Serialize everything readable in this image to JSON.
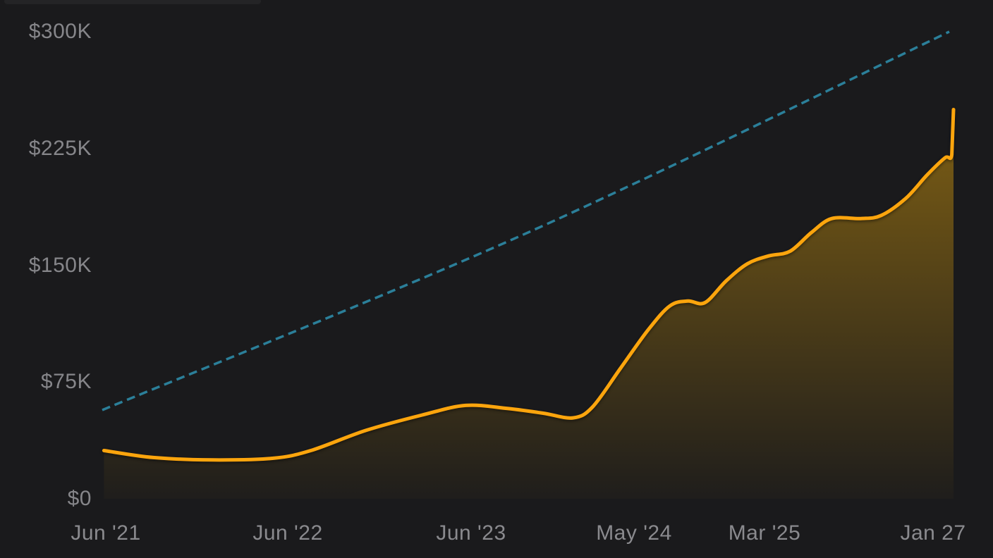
{
  "colors": {
    "background": "#1a1a1c",
    "axis_text": "#86868a",
    "actual_line": "#FCA50D",
    "projection_line": "#2B7F99",
    "fill_top": "rgba(255,184,10,0.44)",
    "fill_bottom": "rgba(255,184,10,0.02)"
  },
  "chart_data": {
    "type": "area",
    "title": "",
    "xlabel": "",
    "ylabel": "",
    "unit": "USD",
    "grid": false,
    "legend": "none",
    "ylim": [
      0,
      300000
    ],
    "y_ticks": [
      {
        "label": "$300K",
        "value": 300000
      },
      {
        "label": "$225K",
        "value": 225000
      },
      {
        "label": "$150K",
        "value": 150000
      },
      {
        "label": "$75K",
        "value": 75000
      },
      {
        "label": "$0",
        "value": 0
      }
    ],
    "x_ticks": [
      {
        "label": "Jun '21",
        "pos": 0.004
      },
      {
        "label": "Jun '22",
        "pos": 0.218
      },
      {
        "label": "Jun '23",
        "pos": 0.433
      },
      {
        "label": "May '24",
        "pos": 0.625
      },
      {
        "label": "Mar '25",
        "pos": 0.778
      },
      {
        "label": "Jan 27",
        "pos": 0.976
      }
    ],
    "series": [
      {
        "name": "actual-balance",
        "style": "solid-area",
        "points": [
          [
            0.002,
            31000
          ],
          [
            0.06,
            26500
          ],
          [
            0.13,
            25000
          ],
          [
            0.2,
            26000
          ],
          [
            0.245,
            31000
          ],
          [
            0.31,
            44000
          ],
          [
            0.377,
            54000
          ],
          [
            0.427,
            60000
          ],
          [
            0.476,
            58000
          ],
          [
            0.518,
            55000
          ],
          [
            0.553,
            52000
          ],
          [
            0.576,
            59000
          ],
          [
            0.609,
            84000
          ],
          [
            0.642,
            109000
          ],
          [
            0.667,
            124000
          ],
          [
            0.688,
            127000
          ],
          [
            0.708,
            126000
          ],
          [
            0.733,
            140000
          ],
          [
            0.758,
            151000
          ],
          [
            0.783,
            156000
          ],
          [
            0.808,
            159000
          ],
          [
            0.833,
            171000
          ],
          [
            0.857,
            180000
          ],
          [
            0.891,
            180000
          ],
          [
            0.915,
            182000
          ],
          [
            0.944,
            193000
          ],
          [
            0.969,
            208000
          ],
          [
            0.99,
            219000
          ],
          [
            0.998,
            221000
          ],
          [
            1.0,
            250000
          ]
        ]
      },
      {
        "name": "projection",
        "style": "dashed",
        "points": [
          [
            0.0,
            57000
          ],
          [
            0.5,
            171000
          ],
          [
            0.995,
            300000
          ]
        ]
      }
    ]
  }
}
